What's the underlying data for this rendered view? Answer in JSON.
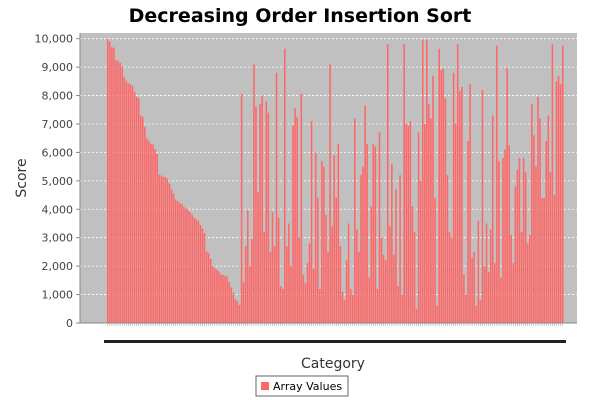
{
  "colors": {
    "bar": "#ff6666",
    "bar_edge": "#ff3b3b",
    "plot_bg": "#c0c0c0",
    "grid": "#ffffff",
    "axis": "#888888"
  },
  "chart_data": {
    "type": "bar",
    "title": "Decreasing Order Insertion Sort",
    "xlabel": "Category",
    "ylabel": "Score",
    "ylim": [
      0,
      10200
    ],
    "y_ticks": [
      "0",
      "1,000",
      "2,000",
      "3,000",
      "4,000",
      "5,000",
      "6,000",
      "7,000",
      "8,000",
      "9,000",
      "10,000"
    ],
    "y_tick_values": [
      0,
      1000,
      2000,
      3000,
      4000,
      5000,
      6000,
      7000,
      8000,
      9000,
      10000
    ],
    "grid": true,
    "legend_position": "bottom-center",
    "series": [
      {
        "name": "Array Values",
        "values": [
          9980,
          9900,
          9700,
          9680,
          9240,
          9220,
          9150,
          9020,
          8660,
          8520,
          8430,
          8400,
          8340,
          8130,
          7960,
          7900,
          7310,
          7250,
          6900,
          6500,
          6400,
          6300,
          6280,
          6110,
          5950,
          5220,
          5190,
          5150,
          5130,
          5080,
          4900,
          4700,
          4550,
          4350,
          4280,
          4220,
          4180,
          4080,
          4030,
          3990,
          3900,
          3820,
          3700,
          3640,
          3590,
          3450,
          3330,
          3160,
          2520,
          2470,
          2250,
          2000,
          1920,
          1880,
          1810,
          1720,
          1690,
          1660,
          1640,
          1440,
          1250,
          1070,
          830,
          760,
          640,
          8060,
          1420,
          2700,
          3950,
          2000,
          2950,
          9100,
          7600,
          4600,
          7700,
          8000,
          3200,
          7800,
          7400,
          2500,
          3900,
          2700,
          8800,
          3700,
          1300,
          1200,
          9650,
          2700,
          3500,
          2000,
          6950,
          7550,
          7250,
          3000,
          8070,
          1700,
          1400,
          2100,
          2800,
          7100,
          1900,
          6000,
          4400,
          1200,
          5700,
          5500,
          3800,
          2500,
          9100,
          3400,
          5900,
          4400,
          6300,
          2700,
          1100,
          800,
          2200,
          3500,
          1200,
          1000,
          7200,
          3300,
          2500,
          5200,
          5500,
          7650,
          6300,
          1600,
          4100,
          6300,
          6200,
          1200,
          6700,
          3000,
          2400,
          2200,
          9800,
          3400,
          5600,
          2400,
          4700,
          1300,
          5200,
          1000,
          9800,
          7000,
          6950,
          7100,
          4100,
          3200,
          500,
          6700,
          5000,
          9950,
          7000,
          9950,
          7700,
          7200,
          8700,
          4400,
          600,
          9650,
          8900,
          8950,
          7900,
          5200,
          3200,
          3000,
          8800,
          7000,
          9800,
          8150,
          8300,
          1700,
          1000,
          6400,
          8400,
          2300,
          2500,
          600,
          3600,
          800,
          8200,
          2000,
          3500,
          1800,
          3300,
          7300,
          2100,
          9750,
          5700,
          1600,
          5800,
          6100,
          8950,
          6250,
          3100,
          2100,
          4800,
          5400,
          5800,
          3200,
          5800,
          5300,
          2800,
          3100,
          7700,
          6600,
          5500,
          7950,
          7200,
          4400,
          4400,
          6400,
          7300,
          5300,
          9800,
          4500,
          8500,
          8700,
          8400,
          9750
        ]
      }
    ]
  }
}
